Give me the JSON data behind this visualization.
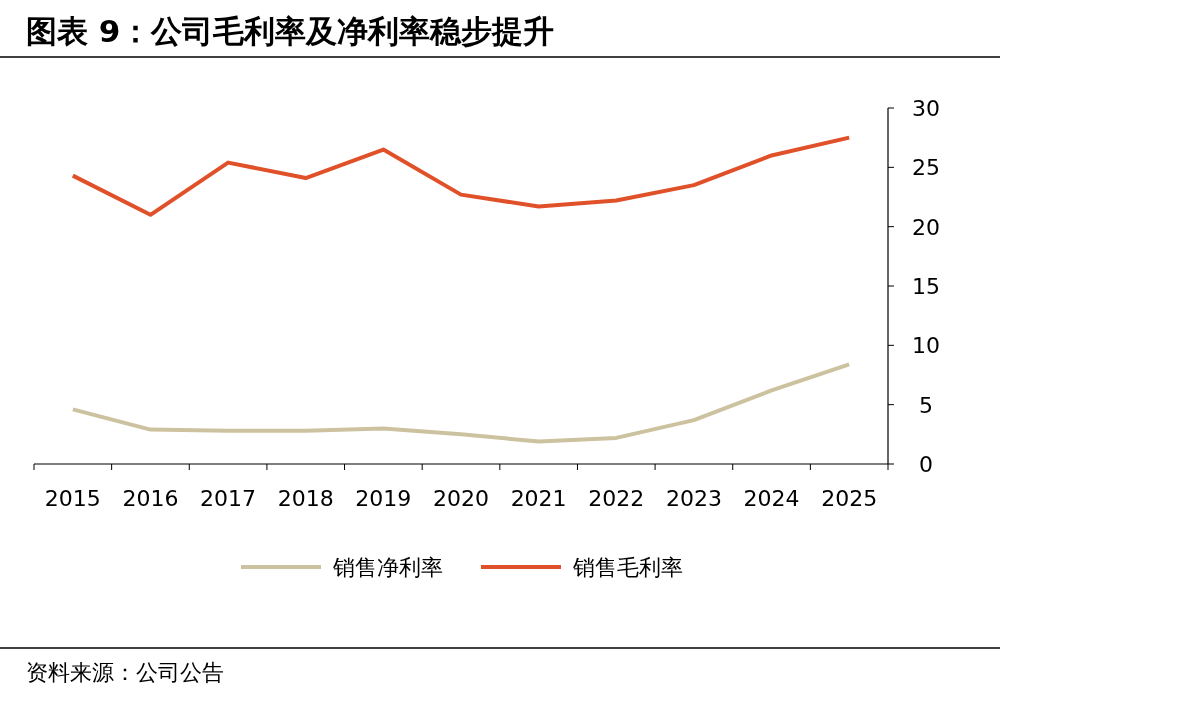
{
  "chart_data": {
    "type": "line",
    "title": "图表 9：公司毛利率及净利率稳步提升",
    "categories": [
      "2015",
      "2016",
      "2017",
      "2018",
      "2019",
      "2020",
      "2021",
      "2022",
      "2023",
      "2024",
      "2025"
    ],
    "series": [
      {
        "name": "销售净利率",
        "color": "#cdc29f",
        "values": [
          4.6,
          2.9,
          2.8,
          2.8,
          3.0,
          2.5,
          1.9,
          2.2,
          3.7,
          6.2,
          8.4
        ]
      },
      {
        "name": "销售毛利率",
        "color": "#e0512a",
        "values": [
          24.3,
          21.0,
          25.4,
          24.1,
          26.5,
          22.7,
          21.7,
          22.2,
          23.5,
          26.0,
          27.5
        ]
      }
    ],
    "ylim": [
      0,
      30
    ],
    "yticks": [
      0,
      5,
      10,
      15,
      20,
      25,
      30
    ],
    "grid": false,
    "legend": "bottom",
    "marker": "none",
    "annotations": [
      "资料来源：公司公告"
    ]
  }
}
